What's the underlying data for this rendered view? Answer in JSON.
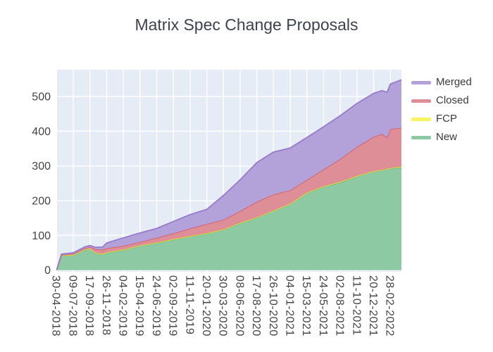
{
  "page": {
    "title": "Matrix Spec Change Proposals"
  },
  "chart_data": {
    "type": "area",
    "stacked": true,
    "title": "Matrix Spec Change Proposals",
    "legend_position": "right-top",
    "grid": true,
    "plot_background": "#e5ecf6",
    "grid_color": "#ffffff",
    "text_color": "#444444",
    "y_ticks": [
      0,
      100,
      200,
      300,
      400,
      500
    ],
    "y_range": [
      0,
      577
    ],
    "x_tick_labels": [
      "30-04-2018",
      "09-07-2018",
      "17-09-2018",
      "26-11-2018",
      "04-02-2019",
      "15-04-2019",
      "24-06-2019",
      "02-09-2019",
      "11-11-2019",
      "20-01-2020",
      "30-03-2020",
      "08-06-2020",
      "17-08-2020",
      "26-10-2020",
      "04-01-2021",
      "15-03-2021",
      "24-05-2021",
      "02-08-2021",
      "11-10-2021",
      "20-12-2021",
      "28-02-2022"
    ],
    "series": [
      {
        "name": "New",
        "fill": "#8dc9a2",
        "line": "#57b97f"
      },
      {
        "name": "FCP",
        "fill": "#f7f45f",
        "line": "#ece62e"
      },
      {
        "name": "Closed",
        "fill": "#de8e97",
        "line": "#d35f6c"
      },
      {
        "name": "Merged",
        "fill": "#b3a2da",
        "line": "#977bca"
      }
    ],
    "legend_order": [
      "Merged",
      "Closed",
      "FCP",
      "New"
    ],
    "samples": [
      {
        "date": "30-04-2018",
        "x": 0,
        "new": 0,
        "fcp": 0,
        "closed": 0,
        "merged": 0
      },
      {
        "date": "21-05-2018",
        "x": 0.3,
        "new": 41,
        "fcp": 1,
        "closed": 2,
        "merged": 2
      },
      {
        "date": "09-07-2018",
        "x": 1,
        "new": 43,
        "fcp": 1,
        "closed": 3,
        "merged": 3
      },
      {
        "date": "26-08-2018",
        "x": 1.7,
        "new": 58,
        "fcp": 1,
        "closed": 4,
        "merged": 4
      },
      {
        "date": "17-09-2018",
        "x": 2,
        "new": 61,
        "fcp": 1,
        "closed": 5,
        "merged": 4
      },
      {
        "date": "08-10-2018",
        "x": 2.3,
        "new": 50,
        "fcp": 1,
        "closed": 10,
        "merged": 5
      },
      {
        "date": "08-11-2018",
        "x": 2.75,
        "new": 45,
        "fcp": 1,
        "closed": 13,
        "merged": 7
      },
      {
        "date": "26-11-2018",
        "x": 3,
        "new": 50,
        "fcp": 1,
        "closed": 12,
        "merged": 15
      },
      {
        "date": "04-02-2019",
        "x": 4,
        "new": 58,
        "fcp": 1,
        "closed": 11,
        "merged": 23
      },
      {
        "date": "15-04-2019",
        "x": 5,
        "new": 70,
        "fcp": 1,
        "closed": 10,
        "merged": 26
      },
      {
        "date": "24-06-2019",
        "x": 6,
        "new": 78,
        "fcp": 1,
        "closed": 14,
        "merged": 27
      },
      {
        "date": "02-09-2019",
        "x": 7,
        "new": 88,
        "fcp": 1,
        "closed": 17,
        "merged": 34
      },
      {
        "date": "11-11-2019",
        "x": 8,
        "new": 97,
        "fcp": 1,
        "closed": 22,
        "merged": 40
      },
      {
        "date": "20-01-2020",
        "x": 9,
        "new": 105,
        "fcp": 1,
        "closed": 27,
        "merged": 42
      },
      {
        "date": "30-03-2020",
        "x": 10,
        "new": 116,
        "fcp": 1,
        "closed": 28,
        "merged": 70
      },
      {
        "date": "08-06-2020",
        "x": 11,
        "new": 135,
        "fcp": 1,
        "closed": 34,
        "merged": 90
      },
      {
        "date": "17-08-2020",
        "x": 12,
        "new": 151,
        "fcp": 1,
        "closed": 45,
        "merged": 113
      },
      {
        "date": "26-10-2020",
        "x": 13,
        "new": 170,
        "fcp": 1,
        "closed": 47,
        "merged": 122
      },
      {
        "date": "04-01-2021",
        "x": 14,
        "new": 190,
        "fcp": 1,
        "closed": 39,
        "merged": 122
      },
      {
        "date": "15-03-2021",
        "x": 15,
        "new": 222,
        "fcp": 1,
        "closed": 37,
        "merged": 122
      },
      {
        "date": "24-05-2021",
        "x": 16,
        "new": 240,
        "fcp": 1,
        "closed": 49,
        "merged": 123
      },
      {
        "date": "02-08-2021",
        "x": 17,
        "new": 252,
        "fcp": 2,
        "closed": 66,
        "merged": 125
      },
      {
        "date": "11-10-2021",
        "x": 18,
        "new": 270,
        "fcp": 1,
        "closed": 84,
        "merged": 125
      },
      {
        "date": "20-12-2021",
        "x": 19,
        "new": 284,
        "fcp": 1,
        "closed": 99,
        "merged": 125
      },
      {
        "date": "24-01-2022",
        "x": 19.5,
        "new": 287,
        "fcp": 1,
        "closed": 104,
        "merged": 125
      },
      {
        "date": "14-02-2022",
        "x": 19.8,
        "new": 291,
        "fcp": 1,
        "closed": 90,
        "merged": 130
      },
      {
        "date": "28-02-2022",
        "x": 20,
        "new": 293,
        "fcp": 1,
        "closed": 112,
        "merged": 130
      },
      {
        "date": "15-04-2022",
        "x": 20.67,
        "new": 296,
        "fcp": 2,
        "closed": 112,
        "merged": 138
      }
    ]
  }
}
